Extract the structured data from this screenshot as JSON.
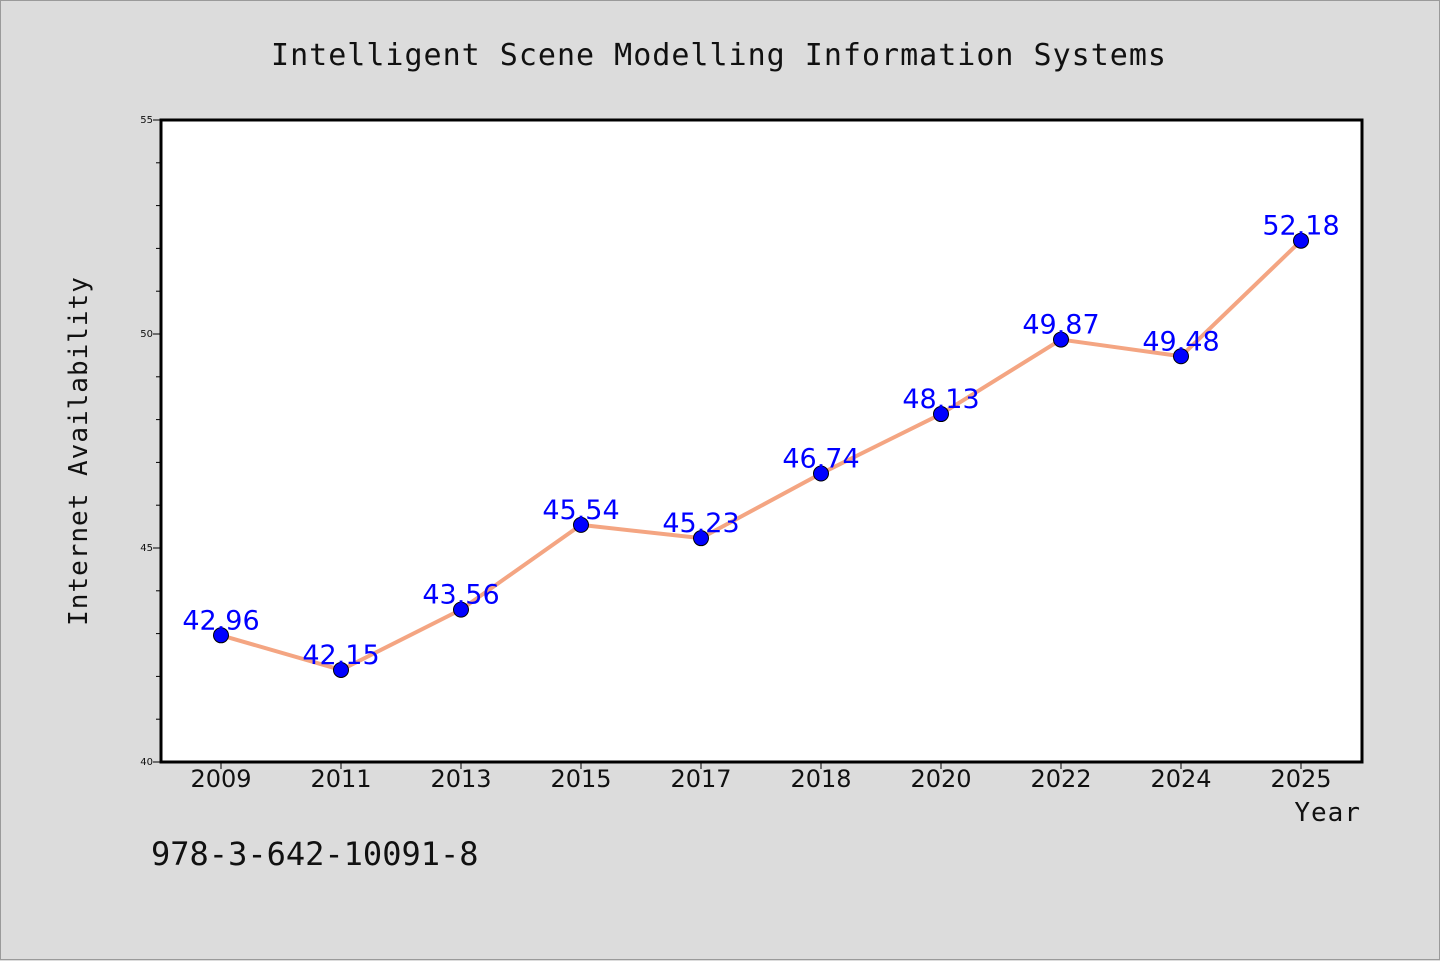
{
  "chart_data": {
    "type": "line",
    "title": "Intelligent Scene Modelling Information Systems",
    "xlabel": "Year",
    "ylabel": "Internet Availability",
    "categories": [
      "2009",
      "2011",
      "2013",
      "2015",
      "2017",
      "2018",
      "2020",
      "2022",
      "2024",
      "2025"
    ],
    "series": [
      {
        "values": [
          42.96,
          42.15,
          43.56,
          45.54,
          45.23,
          46.74,
          48.13,
          49.87,
          49.48,
          52.18
        ],
        "labels": [
          "42.96",
          "42.15",
          "43.56",
          "45.54",
          "45.23",
          "46.74",
          "48.13",
          "49.87",
          "49.48",
          "52.18"
        ],
        "line_color": "#f4a582",
        "marker_color": "#0000ff"
      }
    ],
    "ylim": [
      40,
      55
    ],
    "yticks": [
      "40",
      "45",
      "50",
      "55"
    ],
    "grid": false,
    "legend": "none"
  },
  "footnote": "978-3-642-10091-8",
  "colors": {
    "background": "#dcdcdc",
    "plot_background": "#ffffff",
    "data_label": "#0000ff"
  }
}
